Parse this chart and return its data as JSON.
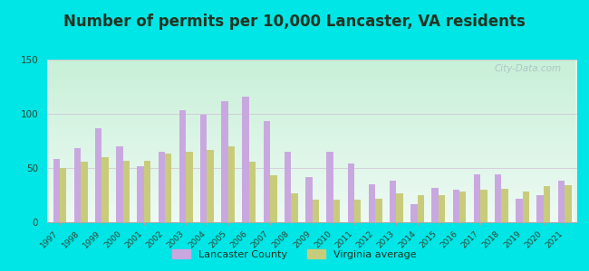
{
  "title": "Number of permits per 10,000 Lancaster, VA residents",
  "years": [
    1997,
    1998,
    1999,
    2000,
    2001,
    2002,
    2003,
    2004,
    2005,
    2006,
    2007,
    2008,
    2009,
    2010,
    2011,
    2012,
    2013,
    2014,
    2015,
    2016,
    2017,
    2018,
    2019,
    2020,
    2021
  ],
  "lancaster": [
    58,
    68,
    87,
    70,
    52,
    65,
    103,
    99,
    112,
    116,
    93,
    65,
    42,
    65,
    54,
    35,
    38,
    17,
    32,
    30,
    44,
    44,
    22,
    25,
    38
  ],
  "virginia": [
    50,
    56,
    60,
    57,
    57,
    63,
    65,
    67,
    70,
    56,
    43,
    27,
    21,
    21,
    21,
    22,
    27,
    25,
    25,
    28,
    30,
    31,
    28,
    33,
    34
  ],
  "lancaster_color": "#c9a8e0",
  "virginia_color": "#c8cc7a",
  "bg_color": "#00e5e5",
  "ylim": [
    0,
    150
  ],
  "yticks": [
    0,
    50,
    100,
    150
  ],
  "title_fontsize": 12,
  "watermark": "City-Data.com",
  "legend_lancaster": "Lancaster County",
  "legend_virginia": "Virginia average",
  "bar_width": 0.32
}
